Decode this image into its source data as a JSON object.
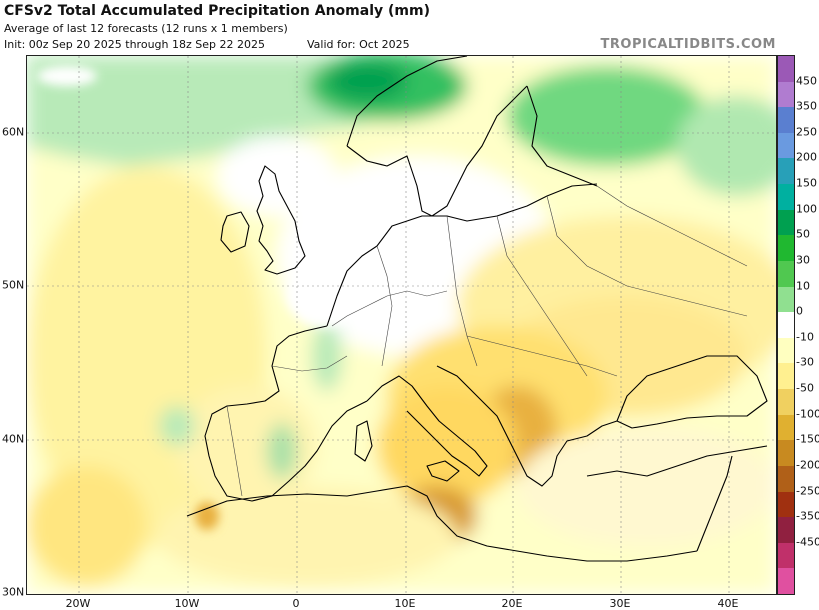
{
  "header": {
    "title": "CFSv2 Total Accumulated Precipitation Anomaly (mm)",
    "subtitle": "Average of last 12 forecasts (12 runs x 1 members)",
    "init": "Init: 00z Sep 20 2025 through 18z Sep 22 2025",
    "valid": "Valid for: Oct 2025",
    "brand": "TROPICALTIDBITS.COM"
  },
  "map": {
    "lat_labels": [
      "60N",
      "50N",
      "40N",
      "30N"
    ],
    "lon_labels": [
      "20W",
      "10W",
      "0",
      "10E",
      "20E",
      "30E",
      "40E"
    ]
  },
  "colorbar": {
    "labels": [
      "450",
      "350",
      "250",
      "200",
      "150",
      "100",
      "50",
      "30",
      "10",
      "0",
      "-10",
      "-30",
      "-50",
      "-100",
      "-150",
      "-200",
      "-250",
      "-350",
      "-450"
    ],
    "colors": [
      "#9b59b6",
      "#b07cd0",
      "#5a7fd0",
      "#6a9ae0",
      "#28a0b8",
      "#00b0a0",
      "#00a050",
      "#20b830",
      "#50c850",
      "#90e090",
      "#ffffff",
      "#ffffc0",
      "#fff090",
      "#f0d060",
      "#e0b030",
      "#c88a20",
      "#b06018",
      "#a03010",
      "#902040",
      "#c0306a",
      "#e050a0"
    ]
  }
}
